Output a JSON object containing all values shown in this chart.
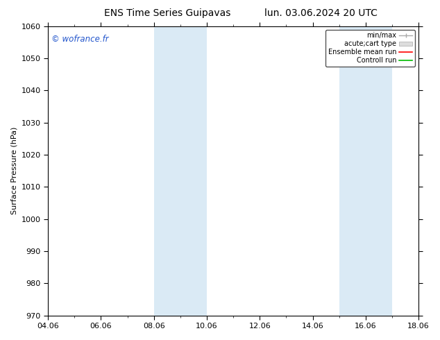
{
  "title_left": "ENS Time Series Guipavas",
  "title_right": "lun. 03.06.2024 20 UTC",
  "ylabel": "Surface Pressure (hPa)",
  "ylim": [
    970,
    1060
  ],
  "yticks": [
    970,
    980,
    990,
    1000,
    1010,
    1020,
    1030,
    1040,
    1050,
    1060
  ],
  "x_start_day": 0,
  "x_end_day": 14,
  "xtick_labels": [
    "04.06",
    "06.06",
    "08.06",
    "10.06",
    "12.06",
    "14.06",
    "16.06",
    "18.06"
  ],
  "xtick_positions_days": [
    0,
    2,
    4,
    6,
    8,
    10,
    12,
    14
  ],
  "shaded_bands": [
    {
      "x0_days": 4,
      "x1_days": 6
    },
    {
      "x0_days": 11,
      "x1_days": 13
    }
  ],
  "shade_color": "#daeaf5",
  "watermark": "© wofrance.fr",
  "watermark_color": "#2255cc",
  "legend_labels": [
    "min/max",
    "acute;cart type",
    "Ensemble mean run",
    "Controll run"
  ],
  "legend_line_colors": [
    "#aaaaaa",
    "#cccccc",
    "#ff0000",
    "#00bb00"
  ],
  "background_color": "#ffffff",
  "title_fontsize": 10,
  "tick_fontsize": 8,
  "ylabel_fontsize": 8,
  "legend_fontsize": 7
}
